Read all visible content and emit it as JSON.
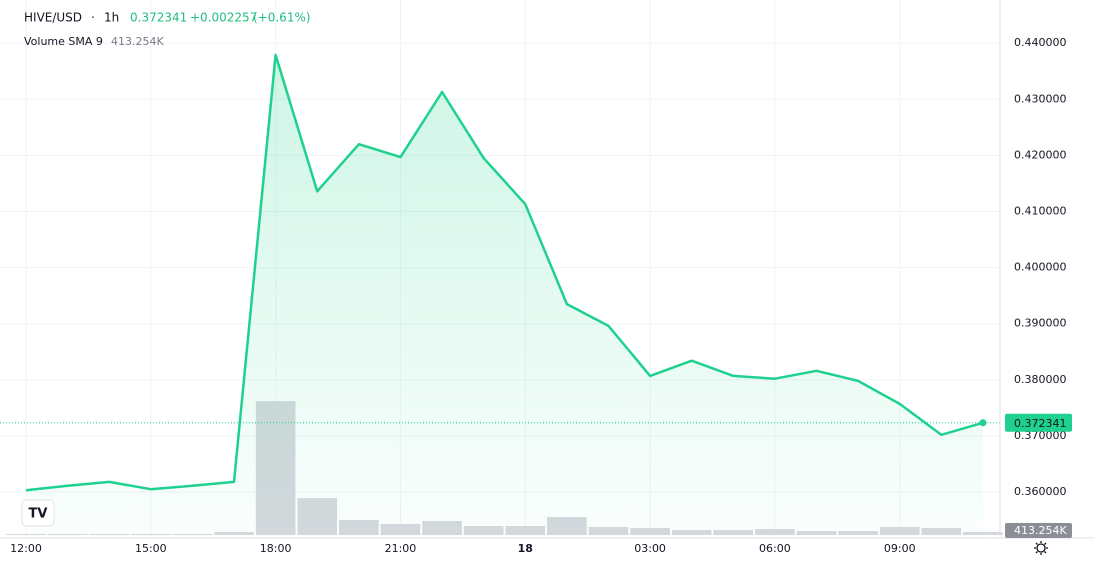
{
  "chart_data": {
    "type": "area",
    "title": "HIVE/USD",
    "interval": "1h",
    "change": "+0.002257",
    "change_pct": "(+0.61%)",
    "color": "#1fd18e",
    "x": [
      12,
      13,
      14,
      15,
      16,
      17,
      18,
      19,
      20,
      21,
      22,
      23,
      24,
      25,
      26,
      27,
      28,
      29,
      30,
      31,
      32,
      33,
      34,
      35
    ],
    "values": [
      0.3603,
      0.3611,
      0.3618,
      0.3605,
      0.3611,
      0.3618,
      0.4379,
      0.4136,
      0.422,
      0.4197,
      0.4313,
      0.4195,
      0.4113,
      0.3935,
      0.3896,
      0.3807,
      0.3834,
      0.3807,
      0.3802,
      0.3816,
      0.3798,
      0.3757,
      0.3702,
      0.372341
    ],
    "xlim": [
      11.375,
      35.41
    ],
    "xticks": [
      {
        "value": 12,
        "label": "12:00"
      },
      {
        "value": 15,
        "label": "15:00"
      },
      {
        "value": 18,
        "label": "18:00"
      },
      {
        "value": 21,
        "label": "21:00"
      },
      {
        "value": 24,
        "label": "18"
      },
      {
        "value": 27,
        "label": "03:00"
      },
      {
        "value": 30,
        "label": "06:00"
      },
      {
        "value": 33,
        "label": "09:00"
      }
    ],
    "ylim": [
      0.3518,
      0.4477
    ],
    "yticks": [
      {
        "value": 0.36,
        "label": "0.360000"
      },
      {
        "value": 0.37,
        "label": "0.370000"
      },
      {
        "value": 0.38,
        "label": "0.380000"
      },
      {
        "value": 0.39,
        "label": "0.390000"
      },
      {
        "value": 0.4,
        "label": "0.400000"
      },
      {
        "value": 0.41,
        "label": "0.410000"
      },
      {
        "value": 0.42,
        "label": "0.420000"
      },
      {
        "value": 0.43,
        "label": "0.430000"
      },
      {
        "value": 0.44,
        "label": "0.440000"
      }
    ],
    "grid": true,
    "volume": {
      "name": "Volume SMA 9",
      "sma_label": "413.254K",
      "color": "#d6d8dd",
      "ylim": [
        0,
        20000
      ],
      "values": [
        76,
        76,
        76,
        76,
        76,
        228,
        10180,
        2810,
        1140,
        836,
        1064,
        684,
        684,
        1368,
        608,
        532,
        380,
        380,
        456,
        304,
        304,
        608,
        532,
        228
      ]
    }
  }
}
